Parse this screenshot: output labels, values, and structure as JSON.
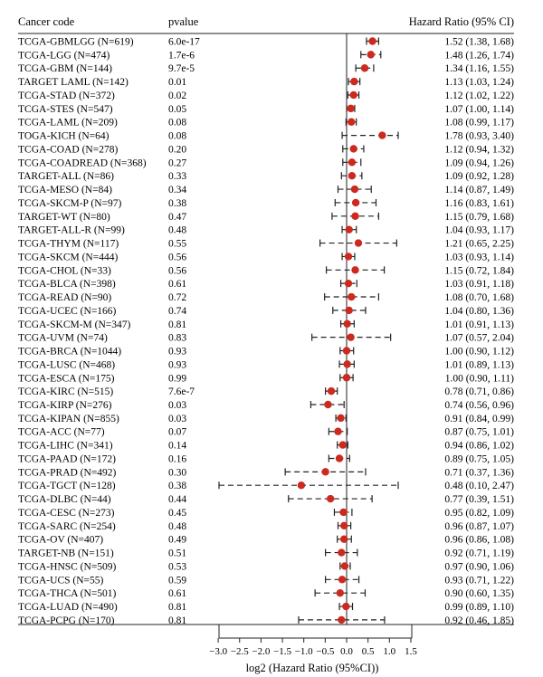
{
  "chart_data": {
    "type": "forest",
    "columns": {
      "label": "Cancer code",
      "pvalue": "pvalue",
      "hr": "Hazard Ratio (95% CI)"
    },
    "xlabel": "log2 (Hazard Ratio (95%CI))",
    "xticks": [
      "-3.0",
      "-2.5",
      "-2.0",
      "-1.5",
      "-1.0",
      "-0.5",
      "0.0",
      "0.5",
      "1.0",
      "1.5"
    ],
    "xlim": [
      -3.0,
      1.5
    ],
    "reference_line": 0,
    "point_color": "#cc2a1f",
    "rows": [
      {
        "label": "TCGA-GBMLGG (N=619)",
        "p": "6.0e-17",
        "hr": 1.52,
        "lo": 1.38,
        "hi": 1.68,
        "text": "1.52 (1.38, 1.68)"
      },
      {
        "label": "TCGA-LGG (N=474)",
        "p": "1.7e-6",
        "hr": 1.48,
        "lo": 1.26,
        "hi": 1.74,
        "text": "1.48 (1.26, 1.74)"
      },
      {
        "label": "TCGA-GBM (N=144)",
        "p": "9.7e-5",
        "hr": 1.34,
        "lo": 1.16,
        "hi": 1.55,
        "text": "1.34 (1.16, 1.55)"
      },
      {
        "label": "TARGET LAML (N=142)",
        "p": "0.01",
        "hr": 1.13,
        "lo": 1.03,
        "hi": 1.24,
        "text": "1.13 (1.03, 1.24)"
      },
      {
        "label": "TCGA-STAD (N=372)",
        "p": "0.02",
        "hr": 1.12,
        "lo": 1.02,
        "hi": 1.22,
        "text": "1.12 (1.02, 1.22)"
      },
      {
        "label": "TCGA-STES (N=547)",
        "p": "0.05",
        "hr": 1.07,
        "lo": 1.0,
        "hi": 1.14,
        "text": "1.07 (1.00, 1.14)"
      },
      {
        "label": "TCGA-LAML (N=209)",
        "p": "0.08",
        "hr": 1.08,
        "lo": 0.99,
        "hi": 1.17,
        "text": "1.08 (0.99, 1.17)"
      },
      {
        "label": "TOGA-KICH (N=64)",
        "p": "0.08",
        "hr": 1.78,
        "lo": 0.93,
        "hi": 3.4,
        "text": "1.78 (0.93, 3.40)"
      },
      {
        "label": "TCGA-COAD (N=278)",
        "p": "0.20",
        "hr": 1.12,
        "lo": 0.94,
        "hi": 1.32,
        "text": "1.12 (0.94, 1.32)"
      },
      {
        "label": "TCGA-COADREAD (N=368)",
        "p": "0.27",
        "hr": 1.09,
        "lo": 0.94,
        "hi": 1.26,
        "text": "1.09 (0.94, 1.26)"
      },
      {
        "label": "TARGET-ALL (N=86)",
        "p": "0.33",
        "hr": 1.09,
        "lo": 0.92,
        "hi": 1.28,
        "text": "1.09 (0.92, 1.28)"
      },
      {
        "label": "TCGA-MESO (N=84)",
        "p": "0.34",
        "hr": 1.14,
        "lo": 0.87,
        "hi": 1.49,
        "text": "1.14 (0.87, 1.49)"
      },
      {
        "label": "TCGA-SKCM-P (N=97)",
        "p": "0.38",
        "hr": 1.16,
        "lo": 0.83,
        "hi": 1.61,
        "text": "1.16 (0.83, 1.61)"
      },
      {
        "label": "TARGET-WT (N=80)",
        "p": "0.47",
        "hr": 1.15,
        "lo": 0.79,
        "hi": 1.68,
        "text": "1.15 (0.79, 1.68)"
      },
      {
        "label": "TARGET-ALL-R (N=99)",
        "p": "0.48",
        "hr": 1.04,
        "lo": 0.93,
        "hi": 1.17,
        "text": "1.04 (0.93, 1.17)"
      },
      {
        "label": "TCGA-THYM (N=117)",
        "p": "0.55",
        "hr": 1.21,
        "lo": 0.65,
        "hi": 2.25,
        "text": "1.21 (0.65, 2.25)"
      },
      {
        "label": "TCGA-SKCM (N=444)",
        "p": "0.56",
        "hr": 1.03,
        "lo": 0.93,
        "hi": 1.14,
        "text": "1.03 (0.93, 1.14)"
      },
      {
        "label": "TCGA-CHOL (N=33)",
        "p": "0.56",
        "hr": 1.15,
        "lo": 0.72,
        "hi": 1.84,
        "text": "1.15 (0.72, 1.84)"
      },
      {
        "label": "TCGA-BLCA (N=398)",
        "p": "0.61",
        "hr": 1.03,
        "lo": 0.91,
        "hi": 1.18,
        "text": "1.03 (0.91, 1.18)"
      },
      {
        "label": "TCGA-READ (N=90)",
        "p": "0.72",
        "hr": 1.08,
        "lo": 0.7,
        "hi": 1.68,
        "text": "1.08 (0.70, 1.68)"
      },
      {
        "label": "TCGA-UCEC (N=166)",
        "p": "0.74",
        "hr": 1.04,
        "lo": 0.8,
        "hi": 1.36,
        "text": "1.04 (0.80, 1.36)"
      },
      {
        "label": "TCGA-SKCM-M (N=347)",
        "p": "0.81",
        "hr": 1.01,
        "lo": 0.91,
        "hi": 1.13,
        "text": "1.01 (0.91, 1.13)"
      },
      {
        "label": "TCGA-UVM (N=74)",
        "p": "0.83",
        "hr": 1.07,
        "lo": 0.57,
        "hi": 2.04,
        "text": "1.07 (0.57, 2.04)"
      },
      {
        "label": "TCGA-BRCA (N=1044)",
        "p": "0.93",
        "hr": 1.0,
        "lo": 0.9,
        "hi": 1.12,
        "text": "1.00 (0.90, 1.12)"
      },
      {
        "label": "TCGA-LUSC (N=468)",
        "p": "0.93",
        "hr": 1.01,
        "lo": 0.89,
        "hi": 1.13,
        "text": "1.01 (0.89, 1.13)"
      },
      {
        "label": "TCGA-ESCA (N=175)",
        "p": "0.99",
        "hr": 1.0,
        "lo": 0.9,
        "hi": 1.11,
        "text": "1.00 (0.90, 1.11)"
      },
      {
        "label": "TCGA-KIRC (N=515)",
        "p": "7.6e-7",
        "hr": 0.78,
        "lo": 0.71,
        "hi": 0.86,
        "text": "0.78 (0.71, 0.86)"
      },
      {
        "label": "TCGA-KIRP (N=276)",
        "p": "0.03",
        "hr": 0.74,
        "lo": 0.56,
        "hi": 0.96,
        "text": "0.74 (0.56, 0.96)"
      },
      {
        "label": "TCGA-KIPAN (N=855)",
        "p": "0.03",
        "hr": 0.91,
        "lo": 0.84,
        "hi": 0.99,
        "text": "0.91 (0.84, 0.99)"
      },
      {
        "label": "TCGA-ACC (N=77)",
        "p": "0.07",
        "hr": 0.87,
        "lo": 0.75,
        "hi": 1.01,
        "text": "0.87 (0.75, 1.01)"
      },
      {
        "label": "TCGA-LIHC (N=341)",
        "p": "0.14",
        "hr": 0.94,
        "lo": 0.86,
        "hi": 1.02,
        "text": "0.94 (0.86, 1.02)"
      },
      {
        "label": "TCGA-PAAD (N=172)",
        "p": "0.16",
        "hr": 0.89,
        "lo": 0.75,
        "hi": 1.05,
        "text": "0.89 (0.75, 1.05)"
      },
      {
        "label": "TCGA-PRAD (N=492)",
        "p": "0.30",
        "hr": 0.71,
        "lo": 0.37,
        "hi": 1.36,
        "text": "0.71 (0.37, 1.36)"
      },
      {
        "label": "TCGA-TGCT (N=128)",
        "p": "0.38",
        "hr": 0.48,
        "lo": 0.1,
        "hi": 2.47,
        "text": "0.48 (0.10, 2.47)"
      },
      {
        "label": "TCGA-DLBC (N=44)",
        "p": "0.44",
        "hr": 0.77,
        "lo": 0.39,
        "hi": 1.51,
        "text": "0.77 (0.39, 1.51)"
      },
      {
        "label": "TCGA-CESC (N=273)",
        "p": "0.45",
        "hr": 0.95,
        "lo": 0.82,
        "hi": 1.09,
        "text": "0.95 (0.82, 1.09)"
      },
      {
        "label": "TCGA-SARC (N=254)",
        "p": "0.48",
        "hr": 0.96,
        "lo": 0.87,
        "hi": 1.07,
        "text": "0.96 (0.87, 1.07)"
      },
      {
        "label": "TCGA-OV (N=407)",
        "p": "0.49",
        "hr": 0.96,
        "lo": 0.86,
        "hi": 1.08,
        "text": "0.96 (0.86, 1.08)"
      },
      {
        "label": "TARGET-NB (N=151)",
        "p": "0.51",
        "hr": 0.92,
        "lo": 0.71,
        "hi": 1.19,
        "text": "0.92 (0.71, 1.19)"
      },
      {
        "label": "TCGA-HNSC (N=509)",
        "p": "0.53",
        "hr": 0.97,
        "lo": 0.9,
        "hi": 1.06,
        "text": "0.97 (0.90, 1.06)"
      },
      {
        "label": "TCGA-UCS (N=55)",
        "p": "0.59",
        "hr": 0.93,
        "lo": 0.71,
        "hi": 1.22,
        "text": "0.93 (0.71, 1.22)"
      },
      {
        "label": "TCGA-THCA (N=501)",
        "p": "0.61",
        "hr": 0.9,
        "lo": 0.6,
        "hi": 1.35,
        "text": "0.90 (0.60, 1.35)"
      },
      {
        "label": "TCGA-LUAD (N=490)",
        "p": "0.81",
        "hr": 0.99,
        "lo": 0.89,
        "hi": 1.1,
        "text": "0.99 (0.89, 1.10)"
      },
      {
        "label": "TCGA-PCPG (N=170)",
        "p": "0.81",
        "hr": 0.92,
        "lo": 0.46,
        "hi": 1.85,
        "text": "0.92 (0.46, 1.85)"
      }
    ]
  }
}
